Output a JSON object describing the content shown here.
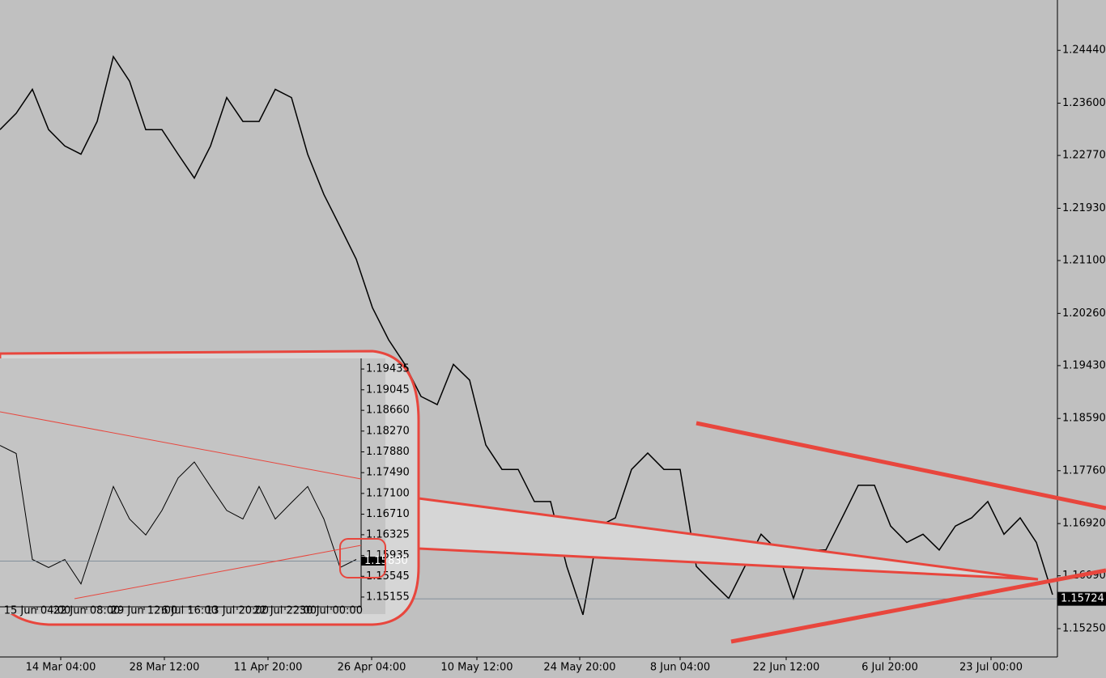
{
  "chart_data": [
    {
      "type": "line",
      "x": [
        0,
        1,
        2,
        3,
        4,
        5,
        6,
        7,
        8,
        9,
        10,
        11,
        12,
        13,
        14,
        15,
        16,
        17,
        18,
        19,
        20,
        21,
        22,
        23,
        24,
        25,
        26,
        27,
        28,
        29,
        30,
        31,
        32,
        33,
        34,
        35,
        36,
        37,
        38,
        39,
        40,
        41,
        42,
        43,
        44,
        45,
        46,
        47,
        48,
        49,
        50,
        51,
        52,
        53,
        54,
        55,
        56,
        57,
        58,
        59,
        60,
        61,
        62,
        63,
        64,
        65
      ],
      "series": [
        {
          "color": "#000000",
          "values": [
            1.2318,
            1.2344,
            1.2382,
            1.2318,
            1.2292,
            1.2279,
            1.2331,
            1.2434,
            1.2395,
            1.2318,
            1.2318,
            1.2279,
            1.2241,
            1.2292,
            1.2369,
            1.2331,
            1.2331,
            1.2382,
            1.2369,
            1.2279,
            1.2215,
            1.2164,
            1.2112,
            1.2035,
            1.1984,
            1.1945,
            1.1894,
            1.1881,
            1.1945,
            1.192,
            1.1817,
            1.1778,
            1.1778,
            1.1727,
            1.1727,
            1.1624,
            1.1547,
            1.1688,
            1.1701,
            1.1778,
            1.1804,
            1.1778,
            1.1778,
            1.1624,
            1.1598,
            1.1573,
            1.1624,
            1.1675,
            1.165,
            1.1573,
            1.165,
            1.165,
            1.1701,
            1.1753,
            1.1753,
            1.1688,
            1.1662,
            1.1675,
            1.165,
            1.1688,
            1.1701,
            1.1727,
            1.1675,
            1.1701,
            1.1662,
            1.1579
          ]
        }
      ],
      "xlim": [
        0,
        65.3
      ],
      "xticks": [
        {
          "value": 3.75,
          "label": "14 Mar 04:00"
        },
        {
          "value": 10.15,
          "label": "28 Mar 12:00"
        },
        {
          "value": 16.55,
          "label": "11 Apr 20:00"
        },
        {
          "value": 22.95,
          "label": "26 Apr 04:00"
        },
        {
          "value": 29.45,
          "label": "10 May 12:00"
        },
        {
          "value": 35.8,
          "label": "24 May 20:00"
        },
        {
          "value": 42,
          "label": "8 Jun 04:00"
        },
        {
          "value": 48.55,
          "label": "22 Jun 12:00"
        },
        {
          "value": 54.95,
          "label": "6 Jul 20:00"
        },
        {
          "value": 61.2,
          "label": "23 Jul 00:00"
        }
      ],
      "ylim": [
        1.148,
        1.2524
      ],
      "yticks": [
        {
          "value": 1.2444,
          "label": "1.24440"
        },
        {
          "value": 1.236,
          "label": "1.23600"
        },
        {
          "value": 1.2277,
          "label": "1.22770"
        },
        {
          "value": 1.2193,
          "label": "1.21930"
        },
        {
          "value": 1.211,
          "label": "1.21100"
        },
        {
          "value": 1.2026,
          "label": "1.20260"
        },
        {
          "value": 1.1943,
          "label": "1.19430"
        },
        {
          "value": 1.1859,
          "label": "1.18590"
        },
        {
          "value": 1.1776,
          "label": "1.17760"
        },
        {
          "value": 1.1692,
          "label": "1.16920"
        },
        {
          "value": 1.1609,
          "label": "1.16090"
        },
        {
          "value": 1.1525,
          "label": "1.15250"
        }
      ],
      "last_price": 1.15724
    },
    {
      "type": "line",
      "x": [
        0,
        1,
        2,
        3,
        4,
        5,
        6,
        7,
        8,
        9,
        10,
        11,
        12,
        13,
        14,
        15,
        16,
        17,
        18,
        19,
        20,
        21,
        22
      ],
      "series": [
        {
          "color": "#000000",
          "values": [
            1.18,
            1.1785,
            1.1586,
            1.1571,
            1.1586,
            1.154,
            1.1632,
            1.1723,
            1.1662,
            1.1632,
            1.1678,
            1.1739,
            1.1769,
            1.1723,
            1.1678,
            1.1662,
            1.1723,
            1.1662,
            1.1693,
            1.1723,
            1.1662,
            1.1571,
            1.1586
          ]
        }
      ],
      "xlim": [
        0,
        22.3
      ],
      "xticks": [
        {
          "value": 2.3,
          "label": "15 Jun 04:00"
        },
        {
          "value": 5.35,
          "label": "22 Jun 08:00"
        },
        {
          "value": 8.9,
          "label": "29 Jun 12:00"
        },
        {
          "value": 11.7,
          "label": "6 Jul 16:00"
        },
        {
          "value": 14.65,
          "label": "13 Jul 20:00"
        },
        {
          "value": 17.6,
          "label": "22 Jul 22:00"
        },
        {
          "value": 20.45,
          "label": "30 Jul 00:00"
        }
      ],
      "ylim": [
        1.14972,
        1.19634
      ],
      "yticks": [
        1.19435,
        1.19045,
        {
          "value": 1.1866,
          "label": "1.18660"
        },
        {
          "value": 1.1827,
          "label": "1.18270"
        },
        {
          "value": 1.1788,
          "label": "1.17880"
        },
        {
          "value": 1.1749,
          "label": "1.17490"
        },
        {
          "value": 1.171,
          "label": "1.17100"
        },
        {
          "value": 1.1671,
          "label": "1.16710"
        },
        1.16325,
        1.15935,
        1.15545,
        1.15155
      ],
      "last_price": {
        "value": 1.1583,
        "label": "1.15830"
      }
    }
  ]
}
